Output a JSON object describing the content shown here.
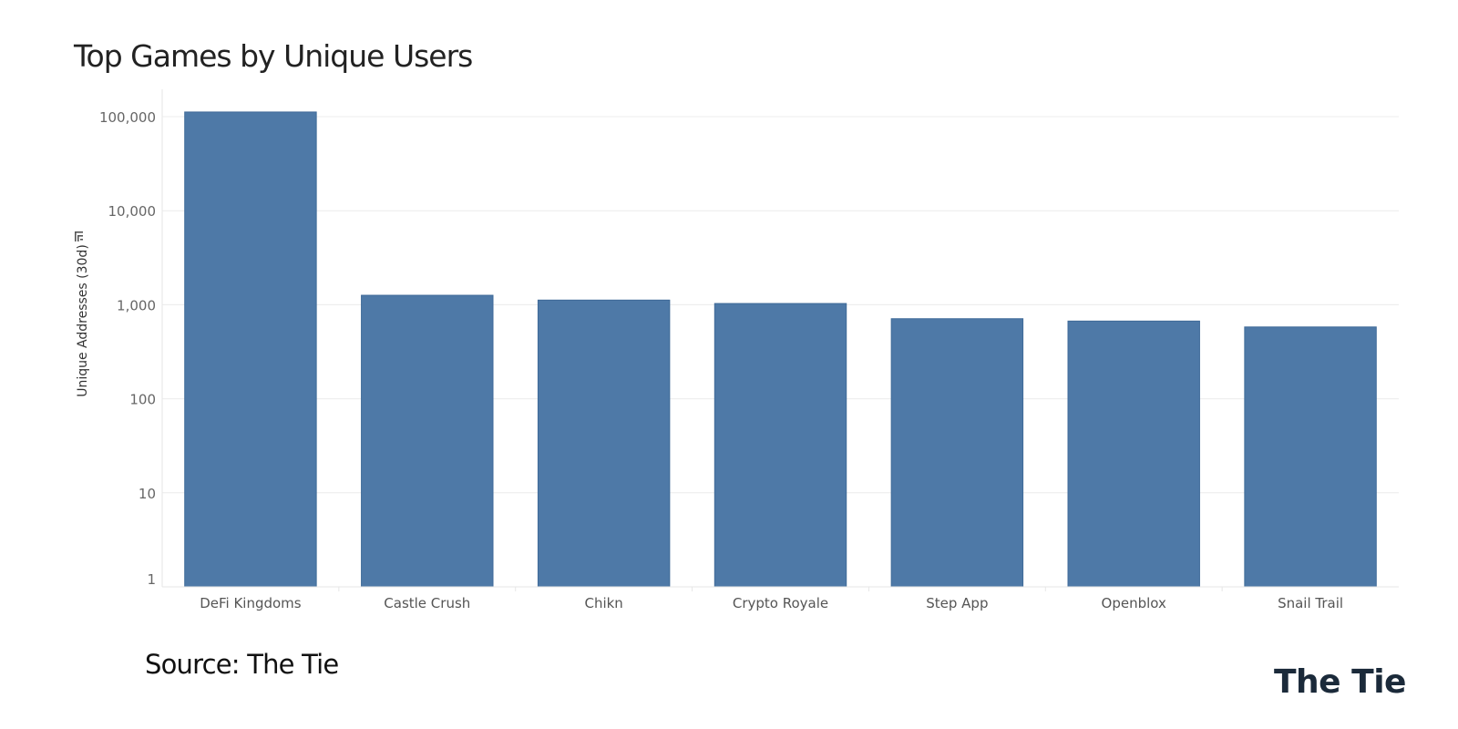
{
  "chart_data": {
    "type": "bar",
    "title": "Top Games by Unique Users",
    "xlabel": "",
    "ylabel": "Unique Addresses (30d)",
    "yscale": "log",
    "ylim": [
      1,
      120000
    ],
    "yticks": [
      1,
      10,
      100,
      1000,
      10000,
      100000
    ],
    "ytick_labels": [
      "1",
      "10",
      "100",
      "1,000",
      "10,000",
      "100,000"
    ],
    "categories": [
      "DeFi Kingdoms",
      "Castle Crush",
      "Chikn",
      "Crypto Royale",
      "Step App",
      "Openblox",
      "Snail Trail"
    ],
    "values": [
      112000,
      1260,
      1120,
      1030,
      710,
      670,
      580
    ],
    "grid": true,
    "legend": "none",
    "bar_color": "#4e79a7"
  },
  "source_text": "Source: The Tie",
  "logo_text": "The Tie"
}
